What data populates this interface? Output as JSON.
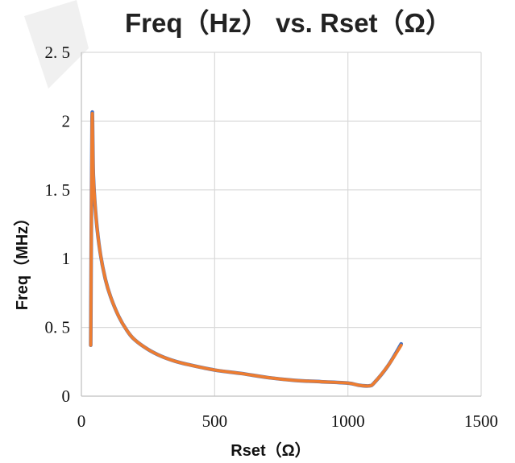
{
  "chart_data": {
    "type": "scatter",
    "title": "Freq（Hz） vs. Rset（Ω）",
    "xlabel": "Rset（Ω）",
    "ylabel": "Freq（MHz）",
    "xlim": [
      0,
      1500
    ],
    "ylim": [
      0,
      2.5
    ],
    "x_ticks": [
      "0",
      "500",
      "1000",
      "1500"
    ],
    "y_ticks": [
      "0",
      "0. 5",
      "1",
      "1. 5",
      "2",
      "2. 5"
    ],
    "x_tick_values": [
      0,
      500,
      1000,
      1500
    ],
    "y_tick_values": [
      0,
      0.5,
      1,
      1.5,
      2,
      2.5
    ],
    "grid": true,
    "legend": "none",
    "series": [
      {
        "color": "#4472c4",
        "x": [
          35,
          40,
          45,
          55,
          70,
          90,
          110,
          140,
          170,
          200,
          250,
          300,
          350,
          400,
          500,
          600,
          700,
          800,
          900,
          1000,
          1040,
          1080,
          1100,
          1150,
          1200
        ],
        "y": [
          0.37,
          2.01,
          1.6,
          1.3,
          1.05,
          0.85,
          0.72,
          0.58,
          0.48,
          0.41,
          0.34,
          0.29,
          0.255,
          0.23,
          0.19,
          0.165,
          0.135,
          0.115,
          0.105,
          0.095,
          0.08,
          0.075,
          0.1,
          0.22,
          0.38
        ]
      },
      {
        "color": "#ed7d31",
        "x": [
          35,
          40,
          45,
          55,
          70,
          90,
          110,
          140,
          170,
          200,
          250,
          300,
          350,
          400,
          500,
          600,
          700,
          800,
          900,
          1000,
          1040,
          1080,
          1100,
          1150,
          1200
        ],
        "y": [
          0.37,
          2.0,
          1.6,
          1.3,
          1.05,
          0.85,
          0.72,
          0.58,
          0.48,
          0.41,
          0.34,
          0.29,
          0.255,
          0.23,
          0.19,
          0.165,
          0.135,
          0.115,
          0.105,
          0.095,
          0.08,
          0.075,
          0.1,
          0.22,
          0.37
        ]
      }
    ]
  }
}
